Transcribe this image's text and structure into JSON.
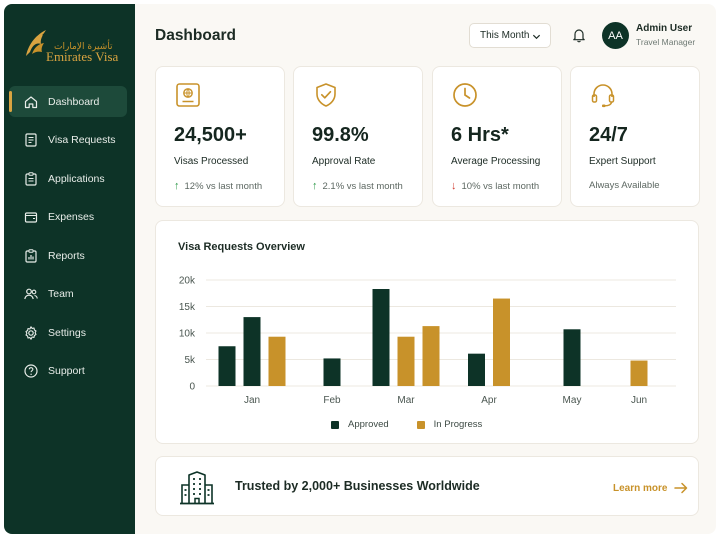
{
  "brand": {
    "name": "Emirates Visa",
    "arabic_name": "تأشيرة الإمارات",
    "accent": "#D9A441",
    "sidebar_bg": "#0D3327"
  },
  "sidebar": {
    "items": [
      {
        "label": "Dashboard",
        "icon": "home-icon",
        "active": true
      },
      {
        "label": "Visa Requests",
        "icon": "document-list-icon"
      },
      {
        "label": "Applications",
        "icon": "clipboard-icon"
      },
      {
        "label": "Expenses",
        "icon": "wallet-icon"
      },
      {
        "label": "Reports",
        "icon": "report-clipboard-icon"
      },
      {
        "label": "Team",
        "icon": "users-icon"
      },
      {
        "label": "Settings",
        "icon": "gear-icon"
      },
      {
        "label": "Support",
        "icon": "help-circle-icon"
      }
    ]
  },
  "header": {
    "title": "Dashboard",
    "period_select": "This Month",
    "user": {
      "initials": "AA",
      "name": "Admin User",
      "role": "Travel Manager"
    }
  },
  "stats": [
    {
      "icon": "passport-icon",
      "value": "24,500+",
      "label": "Visas Processed",
      "trend": "12% vs last month",
      "direction": "up"
    },
    {
      "icon": "shield-check-icon",
      "value": "99.8%",
      "label": "Approval Rate",
      "trend": "2.1% vs last month",
      "direction": "up"
    },
    {
      "icon": "clock-icon",
      "value": "6 Hrs*",
      "label": "Average Processing",
      "trend": "10% vs last month",
      "direction": "down"
    },
    {
      "icon": "headset-icon",
      "value": "24/7",
      "label": "Expert Support",
      "trend": "Always Available",
      "direction": "none"
    }
  ],
  "chart_data": {
    "type": "bar",
    "title": "Visa Requests Overview",
    "categories": [
      "Jan",
      "Feb",
      "Mar",
      "Apr",
      "May",
      "Jun"
    ],
    "series": [
      {
        "name": "Approved",
        "color": "#0D3327",
        "values": [
          [
            7500,
            13000
          ],
          [
            5200
          ],
          [
            18300
          ],
          [
            6100
          ],
          [
            10700
          ],
          []
        ]
      },
      {
        "name": "In Progress",
        "color": "#C8922A",
        "values": [
          [
            9300
          ],
          [],
          [
            9300,
            11300
          ],
          [
            16500
          ],
          [],
          [
            4800
          ]
        ]
      }
    ],
    "ylim": [
      0,
      20000
    ],
    "yticks": [
      "0",
      "5k",
      "10k",
      "15k",
      "20k"
    ],
    "grid": true,
    "legend_position": "bottom"
  },
  "banner": {
    "text": "Trusted by 2,000+ Businesses Worldwide",
    "link": "Learn more"
  }
}
